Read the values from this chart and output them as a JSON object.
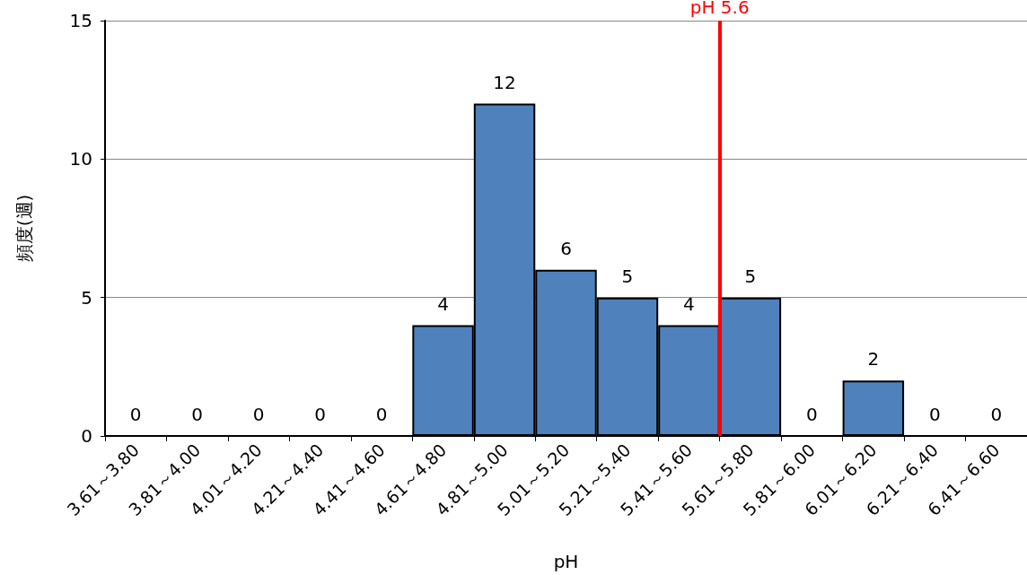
{
  "chart_data": {
    "type": "bar",
    "xlabel": "pH",
    "ylabel": "頻度(週)",
    "categories": [
      "3.61～3.80",
      "3.81～4.00",
      "4.01～4.20",
      "4.21～4.40",
      "4.41～4.60",
      "4.61～4.80",
      "4.81～5.00",
      "5.01～5.20",
      "5.21～5.40",
      "5.41～5.60",
      "5.61～5.80",
      "5.81～6.00",
      "6.01～6.20",
      "6.21～6.40",
      "6.41～6.60"
    ],
    "values": [
      0,
      0,
      0,
      0,
      0,
      4,
      12,
      6,
      5,
      4,
      5,
      0,
      2,
      0,
      0
    ],
    "color": "#4f81bd",
    "ylim": [
      0,
      15
    ],
    "yticks": [
      0,
      5,
      10,
      15
    ],
    "grid": "y",
    "data_labels": true,
    "ref_lines": [
      {
        "axis": "x",
        "value": "5.61～5.80",
        "label": "pH 5.6",
        "color": "#ff0000"
      }
    ]
  }
}
